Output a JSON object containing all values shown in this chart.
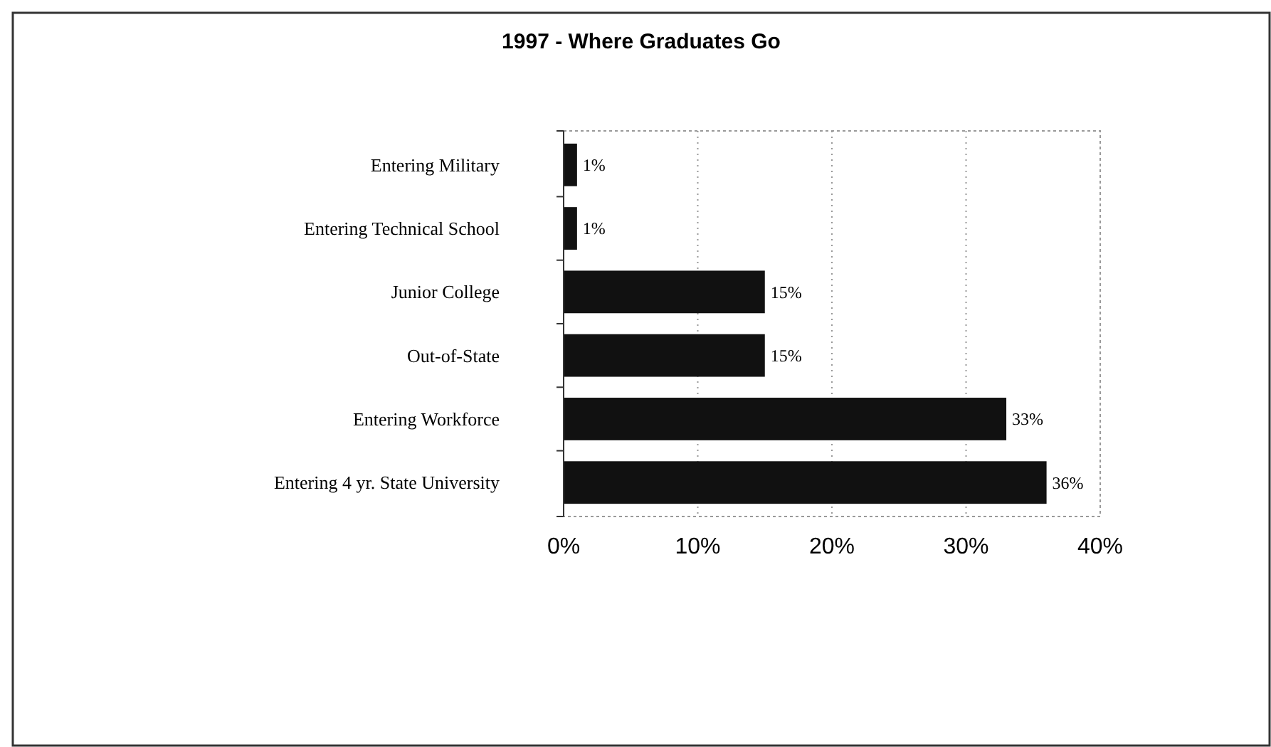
{
  "chart_data": {
    "type": "bar",
    "orientation": "horizontal",
    "title": "1997 - Where Graduates Go",
    "categories": [
      "Entering Military",
      "Entering Technical School",
      "Junior College",
      "Out-of-State",
      "Entering Workforce",
      "Entering 4 yr. State University"
    ],
    "values": [
      1,
      1,
      15,
      15,
      33,
      36
    ],
    "color": "#111111",
    "value_labels": [
      "1%",
      "1%",
      "15%",
      "15%",
      "33%",
      "36%"
    ],
    "xlim": [
      0,
      40
    ],
    "xticks": [
      {
        "value": 0,
        "label": "0%"
      },
      {
        "value": 10,
        "label": "10%"
      },
      {
        "value": 20,
        "label": "20%"
      },
      {
        "value": 30,
        "label": "30%"
      },
      {
        "value": 40,
        "label": "40%"
      }
    ],
    "grid": "x"
  }
}
